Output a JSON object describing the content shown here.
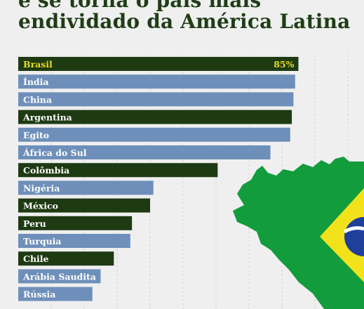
{
  "headline": {
    "line1": "e se torna o país mais",
    "line2": "endividado da América Latina"
  },
  "colors": {
    "background": "#efefef",
    "dark_green": "#1e3a12",
    "blue": "#6e8fba",
    "label_yellow": "#e8dd2a",
    "map_green": "#129c3c",
    "map_yellow": "#f2e21b",
    "map_blue": "#1f3f9a",
    "headline": "#1f3d16"
  },
  "chart_data": {
    "type": "bar",
    "orientation": "horizontal",
    "categories": [
      "Brasil",
      "Índia",
      "China",
      "Argentina",
      "Egito",
      "África do Sul",
      "Colômbia",
      "Nigéria",
      "México",
      "Peru",
      "Turquia",
      "Chile",
      "Arábia Saudita",
      "Rússia"
    ],
    "values": [
      85,
      84,
      83.5,
      83,
      82.5,
      76.5,
      60.5,
      41,
      40,
      34.5,
      34,
      29,
      25,
      22.5
    ],
    "highlight_colors": [
      "dark",
      "blue",
      "blue",
      "dark",
      "blue",
      "blue",
      "dark",
      "blue",
      "dark",
      "dark",
      "blue",
      "dark",
      "blue",
      "blue"
    ],
    "data_labels": [
      "85%"
    ],
    "xlim": [
      0,
      100
    ],
    "grid": true,
    "legend": "none",
    "title": "",
    "xlabel": "",
    "ylabel": ""
  }
}
